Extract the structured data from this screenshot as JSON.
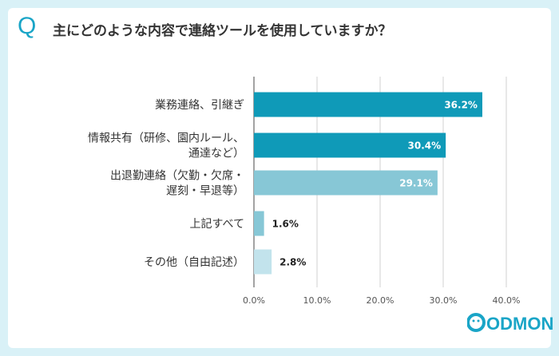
{
  "question": {
    "mark": "Q",
    "text": "主にどのような内容で連絡ツールを使用していますか？"
  },
  "logo": {
    "text": "CODMON"
  },
  "colors": {
    "background": "#d9f1f7",
    "accent": "#1aa5c7",
    "bars": [
      "#0f9ab8",
      "#0f9ab8",
      "#87c7d6",
      "#87c7d6",
      "#c2e3ec"
    ]
  },
  "chart_data": {
    "type": "bar",
    "orientation": "horizontal",
    "categories": [
      [
        "業務連絡、引継ぎ"
      ],
      [
        "情報共有（研修、園内ルール、",
        "通達など）"
      ],
      [
        "出退勤連絡（欠勤・欠席・",
        "遅刻・早退等）"
      ],
      [
        "上記すべて"
      ],
      [
        "その他（自由記述）"
      ]
    ],
    "values": [
      36.2,
      30.4,
      29.1,
      1.6,
      2.8
    ],
    "value_labels": [
      "36.2%",
      "30.4%",
      "29.1%",
      "1.6%",
      "2.8%"
    ],
    "xlim": [
      0,
      40
    ],
    "xticks": [
      0,
      10,
      20,
      30,
      40
    ],
    "xtick_labels": [
      "0.0%",
      "10.0%",
      "20.0%",
      "30.0%",
      "40.0%"
    ],
    "grid": true
  }
}
